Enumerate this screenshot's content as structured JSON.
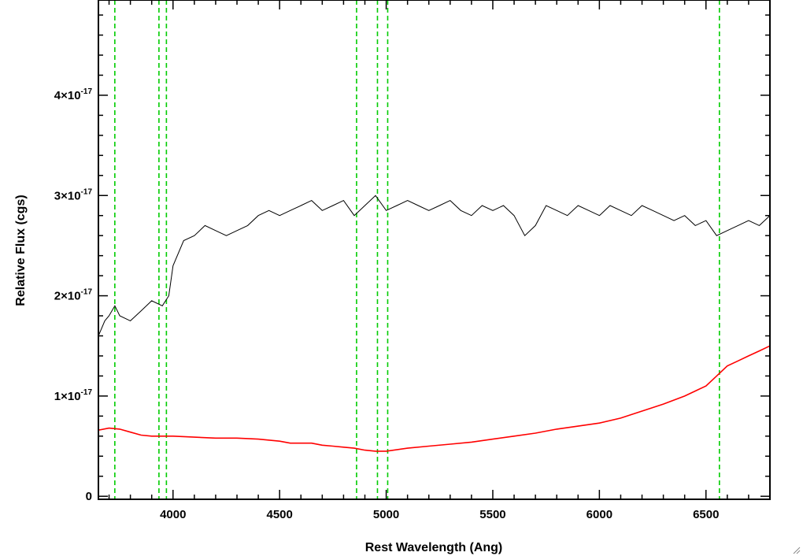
{
  "chart_data": {
    "type": "line",
    "xlabel": "Rest Wavelength (Ang)",
    "ylabel": "Relative Flux (cgs)",
    "xlim": [
      3650,
      6800
    ],
    "ylim": [
      -3e-19,
      4.95e-17
    ],
    "x_ticks": [
      4000,
      4500,
      5000,
      5500,
      6000,
      6500
    ],
    "x_tick_labels": [
      "4000",
      "4500",
      "5000",
      "5500",
      "6000",
      "6500"
    ],
    "y_ticks": [
      0,
      1e-17,
      2e-17,
      3e-17,
      4e-17
    ],
    "y_tick_labels": [
      {
        "base": "0",
        "exp": ""
      },
      {
        "base": "1×10",
        "exp": "-17"
      },
      {
        "base": "2×10",
        "exp": "-17"
      },
      {
        "base": "3×10",
        "exp": "-17"
      },
      {
        "base": "4×10",
        "exp": "-17"
      }
    ],
    "reference_lines": {
      "color": "#00cc00",
      "style": "dashed",
      "x": [
        3727,
        3934,
        3969,
        4861,
        4959,
        5007,
        6563
      ]
    },
    "series": [
      {
        "color": "#000000",
        "x": [
          3650,
          3680,
          3700,
          3727,
          3750,
          3800,
          3850,
          3900,
          3950,
          3980,
          4000,
          4050,
          4100,
          4150,
          4200,
          4250,
          4300,
          4350,
          4400,
          4450,
          4500,
          4550,
          4600,
          4650,
          4700,
          4750,
          4800,
          4850,
          4900,
          4950,
          5000,
          5050,
          5100,
          5150,
          5200,
          5250,
          5300,
          5350,
          5400,
          5450,
          5500,
          5550,
          5600,
          5650,
          5700,
          5750,
          5800,
          5850,
          5900,
          5950,
          6000,
          6050,
          6100,
          6150,
          6200,
          6250,
          6300,
          6350,
          6400,
          6450,
          6500,
          6550,
          6600,
          6650,
          6700,
          6750,
          6800
        ],
        "y": [
          1.6e-17,
          1.75e-17,
          1.8e-17,
          1.9e-17,
          1.8e-17,
          1.75e-17,
          1.85e-17,
          1.95e-17,
          1.9e-17,
          2e-17,
          2.3e-17,
          2.55e-17,
          2.6e-17,
          2.7e-17,
          2.65e-17,
          2.6e-17,
          2.65e-17,
          2.7e-17,
          2.8e-17,
          2.85e-17,
          2.8e-17,
          2.85e-17,
          2.9e-17,
          2.95e-17,
          2.85e-17,
          2.9e-17,
          2.95e-17,
          2.8e-17,
          2.9e-17,
          3e-17,
          2.85e-17,
          2.9e-17,
          2.95e-17,
          2.9e-17,
          2.85e-17,
          2.9e-17,
          2.95e-17,
          2.85e-17,
          2.8e-17,
          2.9e-17,
          2.85e-17,
          2.9e-17,
          2.8e-17,
          2.6e-17,
          2.7e-17,
          2.9e-17,
          2.85e-17,
          2.8e-17,
          2.9e-17,
          2.85e-17,
          2.8e-17,
          2.9e-17,
          2.85e-17,
          2.8e-17,
          2.9e-17,
          2.85e-17,
          2.8e-17,
          2.75e-17,
          2.8e-17,
          2.7e-17,
          2.75e-17,
          2.6e-17,
          2.65e-17,
          2.7e-17,
          2.75e-17,
          2.7e-17,
          2.8e-17
        ]
      },
      {
        "color": "#ff0000",
        "x": [
          3650,
          3700,
          3750,
          3800,
          3850,
          3900,
          3950,
          4000,
          4100,
          4200,
          4300,
          4400,
          4500,
          4550,
          4600,
          4650,
          4700,
          4750,
          4800,
          4850,
          4900,
          4950,
          5000,
          5100,
          5200,
          5300,
          5400,
          5500,
          5600,
          5700,
          5800,
          5900,
          6000,
          6100,
          6200,
          6300,
          6400,
          6450,
          6500,
          6550,
          6600,
          6650,
          6700,
          6750,
          6800
        ],
        "y": [
          6.6e-18,
          6.8e-18,
          6.7e-18,
          6.4e-18,
          6.1e-18,
          6e-18,
          6e-18,
          6e-18,
          5.9e-18,
          5.8e-18,
          5.8e-18,
          5.7e-18,
          5.5e-18,
          5.3e-18,
          5.3e-18,
          5.3e-18,
          5.1e-18,
          5e-18,
          4.9e-18,
          4.8e-18,
          4.6e-18,
          4.5e-18,
          4.5e-18,
          4.8e-18,
          5e-18,
          5.2e-18,
          5.4e-18,
          5.7e-18,
          6e-18,
          6.3e-18,
          6.7e-18,
          7e-18,
          7.3e-18,
          7.8e-18,
          8.5e-18,
          9.2e-18,
          1e-17,
          1.05e-17,
          1.1e-17,
          1.2e-17,
          1.3e-17,
          1.35e-17,
          1.4e-17,
          1.45e-17,
          1.5e-17
        ]
      }
    ]
  }
}
